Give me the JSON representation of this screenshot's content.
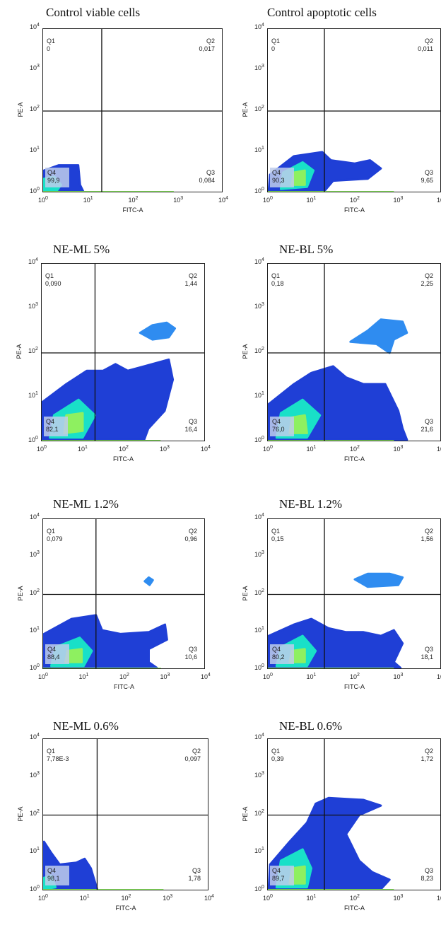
{
  "axis": {
    "x_label": "FITC-A",
    "y_label": "PE-A",
    "tick_base": "10",
    "tick_exponents": [
      "0",
      "1",
      "2",
      "3",
      "4"
    ]
  },
  "chart_data": [
    {
      "type": "scatter",
      "title": "Control viable cells",
      "xlabel": "FITC-A",
      "ylabel": "PE-A",
      "xscale": "log",
      "yscale": "log",
      "xlim": [
        1,
        10000
      ],
      "ylim": [
        1,
        10000
      ],
      "gate": {
        "x": 20,
        "y": 100
      },
      "quadrants": {
        "Q1": "0",
        "Q2": "0,017",
        "Q3": "0,084",
        "Q4": "99,9"
      }
    },
    {
      "type": "scatter",
      "title": "Control apoptotic cells",
      "xlabel": "FITC-A",
      "ylabel": "PE-A",
      "xscale": "log",
      "yscale": "log",
      "xlim": [
        1,
        10000
      ],
      "ylim": [
        1,
        10000
      ],
      "gate": {
        "x": 20,
        "y": 100
      },
      "quadrants": {
        "Q1": "0",
        "Q2": "0,011",
        "Q3": "9,65",
        "Q4": "90,3"
      }
    },
    {
      "type": "scatter",
      "title": "NE-ML 5%",
      "xlabel": "FITC-A",
      "ylabel": "PE-A",
      "xscale": "log",
      "yscale": "log",
      "xlim": [
        1,
        10000
      ],
      "ylim": [
        1,
        10000
      ],
      "gate": {
        "x": 20,
        "y": 100
      },
      "quadrants": {
        "Q1": "0,090",
        "Q2": "1,44",
        "Q3": "16,4",
        "Q4": "82,1"
      }
    },
    {
      "type": "scatter",
      "title": "NE-BL 5%",
      "xlabel": "FITC-A",
      "ylabel": "PE-A",
      "xscale": "log",
      "yscale": "log",
      "xlim": [
        1,
        10000
      ],
      "ylim": [
        1,
        10000
      ],
      "gate": {
        "x": 20,
        "y": 100
      },
      "quadrants": {
        "Q1": "0,18",
        "Q2": "2,25",
        "Q3": "21,6",
        "Q4": "76,0"
      }
    },
    {
      "type": "scatter",
      "title": "NE-ML 1.2%",
      "xlabel": "FITC-A",
      "ylabel": "PE-A",
      "xscale": "log",
      "yscale": "log",
      "xlim": [
        1,
        10000
      ],
      "ylim": [
        1,
        10000
      ],
      "gate": {
        "x": 20,
        "y": 100
      },
      "quadrants": {
        "Q1": "0,079",
        "Q2": "0,96",
        "Q3": "10,6",
        "Q4": "88,4"
      }
    },
    {
      "type": "scatter",
      "title": "NE-BL 1.2%",
      "xlabel": "FITC-A",
      "ylabel": "PE-A",
      "xscale": "log",
      "yscale": "log",
      "xlim": [
        1,
        10000
      ],
      "ylim": [
        1,
        10000
      ],
      "gate": {
        "x": 20,
        "y": 100
      },
      "quadrants": {
        "Q1": "0,15",
        "Q2": "1,56",
        "Q3": "18,1",
        "Q4": "80,2"
      }
    },
    {
      "type": "scatter",
      "title": "NE-ML 0.6%",
      "xlabel": "FITC-A",
      "ylabel": "PE-A",
      "xscale": "log",
      "yscale": "log",
      "xlim": [
        1,
        10000
      ],
      "ylim": [
        1,
        10000
      ],
      "gate": {
        "x": 20,
        "y": 100
      },
      "quadrants": {
        "Q1": "7,78E-3",
        "Q2": "0,097",
        "Q3": "1,78",
        "Q4": "98,1"
      }
    },
    {
      "type": "scatter",
      "title": "NE-BL 0.6%",
      "xlabel": "FITC-A",
      "ylabel": "PE-A",
      "xscale": "log",
      "yscale": "log",
      "xlim": [
        1,
        10000
      ],
      "ylim": [
        1,
        10000
      ],
      "gate": {
        "x": 20,
        "y": 100
      },
      "quadrants": {
        "Q1": "0,39",
        "Q2": "1,72",
        "Q3": "8,23",
        "Q4": "89,7"
      }
    }
  ],
  "colors": {
    "density_low": "#1f3fd6",
    "density_mid": "#2f8cf0",
    "density_high": "#19e0c8",
    "density_peak": "#8ef060",
    "gate_line": "#111111"
  }
}
